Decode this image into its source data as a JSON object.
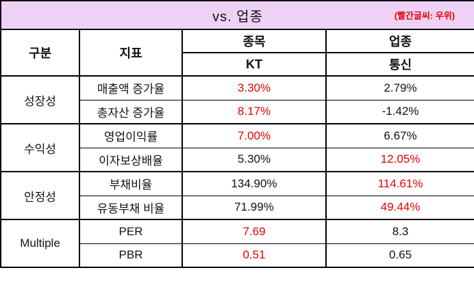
{
  "title": {
    "text": "vs. 업종",
    "note": "(빨간글씨: 우위)"
  },
  "colors": {
    "title_bg": "#EED2F6",
    "highlight_red": "#E60000",
    "border": "#000000"
  },
  "header": {
    "category": "구분",
    "indicator": "지표",
    "stock_group": "종목",
    "stock_name": "KT",
    "industry_group": "업종",
    "industry_name": "통신"
  },
  "groups": [
    {
      "label": "성장성",
      "rows": [
        {
          "indicator": "매출액 증가율",
          "stock": "3.30%",
          "stock_hl": true,
          "industry": "2.79%",
          "industry_hl": false
        },
        {
          "indicator": "총자산 증가율",
          "stock": "8.17%",
          "stock_hl": true,
          "industry": "-1.42%",
          "industry_hl": false
        }
      ]
    },
    {
      "label": "수익성",
      "rows": [
        {
          "indicator": "영업이익률",
          "stock": "7.00%",
          "stock_hl": true,
          "industry": "6.67%",
          "industry_hl": false
        },
        {
          "indicator": "이자보상배율",
          "stock": "5.30%",
          "stock_hl": false,
          "industry": "12.05%",
          "industry_hl": true
        }
      ]
    },
    {
      "label": "안정성",
      "rows": [
        {
          "indicator": "부채비율",
          "stock": "134.90%",
          "stock_hl": false,
          "industry": "114.61%",
          "industry_hl": true
        },
        {
          "indicator": "유동부채 비율",
          "stock": "71.99%",
          "stock_hl": false,
          "industry": "49.44%",
          "industry_hl": true
        }
      ]
    },
    {
      "label": "Multiple",
      "rows": [
        {
          "indicator": "PER",
          "stock": "7.69",
          "stock_hl": true,
          "industry": "8.3",
          "industry_hl": false
        },
        {
          "indicator": "PBR",
          "stock": "0.51",
          "stock_hl": true,
          "industry": "0.65",
          "industry_hl": false
        }
      ]
    }
  ],
  "chart_data": {
    "type": "table",
    "title": "vs. 업종",
    "note": "(빨간글씨: 우위)",
    "header_rows": [
      [
        "구분",
        "지표",
        "종목",
        "업종"
      ],
      [
        "",
        "",
        "KT",
        "통신"
      ]
    ],
    "rows": [
      [
        "성장성",
        "매출액 증가율",
        "3.30%",
        "2.79%"
      ],
      [
        "성장성",
        "총자산 증가율",
        "8.17%",
        "-1.42%"
      ],
      [
        "수익성",
        "영업이익률",
        "7.00%",
        "6.67%"
      ],
      [
        "수익성",
        "이자보상배율",
        "5.30%",
        "12.05%"
      ],
      [
        "안정성",
        "부채비율",
        "134.90%",
        "114.61%"
      ],
      [
        "안정성",
        "유동부채 비율",
        "71.99%",
        "49.44%"
      ],
      [
        "Multiple",
        "PER",
        "7.69",
        "8.3"
      ],
      [
        "Multiple",
        "PBR",
        "0.51",
        "0.65"
      ]
    ],
    "red_cells": [
      "KT:3.30%",
      "KT:8.17%",
      "KT:7.00%",
      "통신:12.05%",
      "통신:114.61%",
      "통신:49.44%",
      "KT:7.69",
      "KT:0.51"
    ]
  }
}
